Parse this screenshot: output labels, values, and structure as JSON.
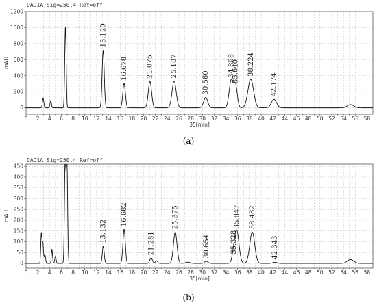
{
  "chart_data": [
    {
      "type": "line",
      "panel_label": "(a)",
      "header": "DAD1A,Sig=250,4  Ref=off",
      "ylabel": "mAU",
      "xlabel": "35[min]",
      "xlim": [
        0,
        59
      ],
      "ylim": [
        -80,
        1200
      ],
      "yticks": [
        0,
        200,
        400,
        600,
        800,
        1000,
        1200
      ],
      "xticks": [
        0,
        1,
        2,
        3,
        4,
        5,
        6,
        7,
        8,
        9,
        10,
        11,
        12,
        13,
        14,
        15,
        16,
        17,
        18,
        19,
        20,
        21,
        22,
        23,
        24,
        25,
        26,
        27,
        28,
        29,
        30,
        31,
        32,
        33,
        34,
        35,
        36,
        37,
        38,
        39,
        40,
        41,
        42,
        43,
        44,
        45,
        46,
        47,
        48,
        49,
        50,
        51,
        52,
        53,
        54,
        55,
        56,
        57,
        58
      ],
      "xtick_labels": [
        "0",
        "2",
        "4",
        "6",
        "8",
        "10",
        "12",
        "14",
        "16",
        "18",
        "20",
        "22",
        "24",
        "26",
        "28",
        "30",
        "32",
        "34",
        "36",
        "38",
        "40",
        "42",
        "44",
        "46",
        "48",
        "50",
        "52",
        "54",
        "56",
        "58"
      ],
      "peaks": [
        {
          "t": 2.9,
          "h": 120,
          "w": 0.12
        },
        {
          "t": 4.2,
          "h": 90,
          "w": 0.12
        },
        {
          "t": 6.7,
          "h": 1010,
          "w": 0.12
        },
        {
          "t": 13.12,
          "h": 720,
          "w": 0.18
        },
        {
          "t": 16.678,
          "h": 305,
          "w": 0.22
        },
        {
          "t": 21.075,
          "h": 330,
          "w": 0.28
        },
        {
          "t": 25.187,
          "h": 335,
          "w": 0.35
        },
        {
          "t": 30.56,
          "h": 130,
          "w": 0.35
        },
        {
          "t": 34.898,
          "h": 340,
          "w": 0.35
        },
        {
          "t": 35.64,
          "h": 270,
          "w": 0.3
        },
        {
          "t": 38.224,
          "h": 355,
          "w": 0.48
        },
        {
          "t": 42.174,
          "h": 105,
          "w": 0.45
        },
        {
          "t": 55.2,
          "h": 40,
          "w": 0.55
        }
      ],
      "labels": [
        {
          "text": "13.120",
          "t": 13.12,
          "h": 720
        },
        {
          "text": "16.678",
          "t": 16.678,
          "h": 305
        },
        {
          "text": "21.075",
          "t": 21.075,
          "h": 330
        },
        {
          "text": "25.187",
          "t": 25.187,
          "h": 335
        },
        {
          "text": "30.560",
          "t": 30.56,
          "h": 130
        },
        {
          "text": "34.898",
          "t": 34.898,
          "h": 340
        },
        {
          "text": "35.640",
          "t": 35.64,
          "h": 270
        },
        {
          "text": "38.224",
          "t": 38.224,
          "h": 355
        },
        {
          "text": "42.174",
          "t": 42.174,
          "h": 105
        }
      ]
    },
    {
      "type": "line",
      "panel_label": "(b)",
      "header": "DAD1A,Sig=250,4  Ref=off",
      "ylabel": "mAU",
      "xlabel": "35[min]",
      "xlim": [
        0,
        59
      ],
      "ylim": [
        -22,
        460
      ],
      "yticks": [
        0,
        50,
        100,
        150,
        200,
        250,
        300,
        350,
        400,
        450
      ],
      "xticks": [
        0,
        1,
        2,
        3,
        4,
        5,
        6,
        7,
        8,
        9,
        10,
        11,
        12,
        13,
        14,
        15,
        16,
        17,
        18,
        19,
        20,
        21,
        22,
        23,
        24,
        25,
        26,
        27,
        28,
        29,
        30,
        31,
        32,
        33,
        34,
        35,
        36,
        37,
        38,
        39,
        40,
        41,
        42,
        43,
        44,
        45,
        46,
        47,
        48,
        49,
        50,
        51,
        52,
        53,
        54,
        55,
        56,
        57,
        58
      ],
      "xtick_labels": [
        "0",
        "2",
        "4",
        "6",
        "8",
        "10",
        "12",
        "14",
        "16",
        "18",
        "20",
        "22",
        "24",
        "26",
        "28",
        "30",
        "32",
        "34",
        "36",
        "38",
        "40",
        "42",
        "44",
        "46",
        "48",
        "50",
        "52",
        "54",
        "56",
        "58"
      ],
      "peaks": [
        {
          "t": 2.6,
          "h": 140,
          "w": 0.1
        },
        {
          "t": 2.85,
          "h": 95,
          "w": 0.1
        },
        {
          "t": 3.2,
          "h": 40,
          "w": 0.12
        },
        {
          "t": 4.4,
          "h": 65,
          "w": 0.1
        },
        {
          "t": 5.0,
          "h": 30,
          "w": 0.12
        },
        {
          "t": 6.65,
          "h": 470,
          "w": 0.12
        },
        {
          "t": 6.95,
          "h": 470,
          "w": 0.12
        },
        {
          "t": 13.132,
          "h": 80,
          "w": 0.16
        },
        {
          "t": 16.682,
          "h": 158,
          "w": 0.2
        },
        {
          "t": 21.281,
          "h": 25,
          "w": 0.22
        },
        {
          "t": 22.2,
          "h": 12,
          "w": 0.2
        },
        {
          "t": 25.375,
          "h": 145,
          "w": 0.3
        },
        {
          "t": 27.5,
          "h": 6,
          "w": 0.4
        },
        {
          "t": 30.654,
          "h": 10,
          "w": 0.3
        },
        {
          "t": 35.328,
          "h": 30,
          "w": 0.3
        },
        {
          "t": 35.847,
          "h": 148,
          "w": 0.38
        },
        {
          "t": 38.482,
          "h": 145,
          "w": 0.42
        },
        {
          "t": 42.343,
          "h": 5,
          "w": 0.4
        },
        {
          "t": 55.2,
          "h": 18,
          "w": 0.55
        }
      ],
      "labels": [
        {
          "text": "13.132",
          "t": 13.132,
          "h": 80
        },
        {
          "text": "16.682",
          "t": 16.682,
          "h": 158
        },
        {
          "text": "21.281",
          "t": 21.281,
          "h": 25
        },
        {
          "text": "25.375",
          "t": 25.375,
          "h": 145
        },
        {
          "text": "30.654",
          "t": 30.654,
          "h": 10
        },
        {
          "text": "35.328",
          "t": 35.328,
          "h": 30
        },
        {
          "text": "35.847",
          "t": 35.847,
          "h": 148
        },
        {
          "text": "38.482",
          "t": 38.482,
          "h": 145
        },
        {
          "text": "42.343",
          "t": 42.343,
          "h": 5
        }
      ]
    }
  ]
}
